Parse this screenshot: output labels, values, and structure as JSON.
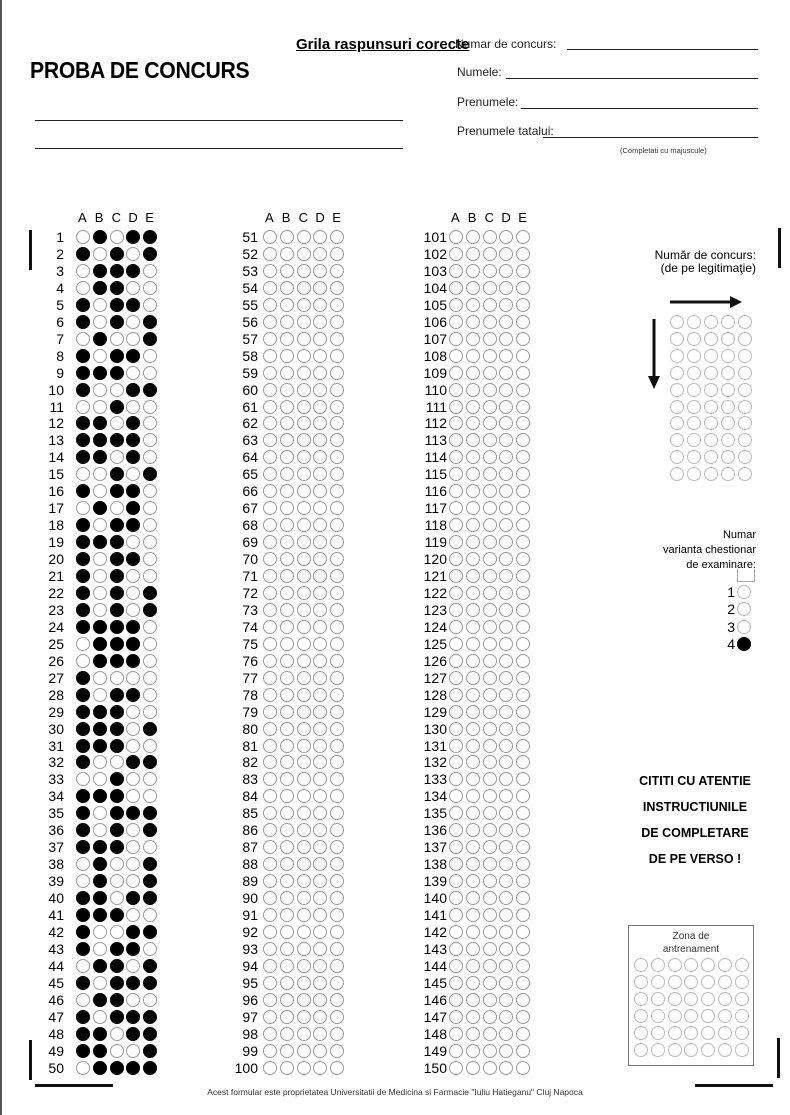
{
  "header": {
    "title": "PROBA DE CONCURS",
    "overlay_title": "Grila raspunsuri corecte",
    "fields": [
      "Numar de concurs:",
      "Numele:",
      "Prenumele:",
      "Prenumele tatalui:"
    ],
    "note": "(Completati cu majuscule)"
  },
  "answer_sheet": {
    "choices": [
      "A",
      "B",
      "C",
      "D",
      "E"
    ],
    "answers": [
      "BDE",
      "ACE",
      "BCD",
      "BC",
      "ACD",
      "ACE",
      "BE",
      "ACD",
      "ABC",
      "ADE",
      "C",
      "ABD",
      "ABCD",
      "ABD",
      "CE",
      "ACD",
      "BD",
      "ACD",
      "ABC",
      "ACD",
      "AC",
      "ACE",
      "ACE",
      "ABCD",
      "BCD",
      "BCD",
      "A",
      "ACD",
      "ABC",
      "ABCE",
      "ABC",
      "ADE",
      "C",
      "ABC",
      "ACDE",
      "ACE",
      "ABC",
      "BE",
      "BE",
      "ABDE",
      "ABC",
      "ADE",
      "ACD",
      "BCE",
      "ACDE",
      "BC",
      "ACDE",
      "ABDE",
      "ABE",
      "BCDE",
      "",
      "",
      "",
      "",
      "",
      "",
      "",
      "",
      "",
      "",
      "",
      "",
      "",
      "",
      "",
      "",
      "",
      "",
      "",
      "",
      "",
      "",
      "",
      "",
      "",
      "",
      "",
      "",
      "",
      "",
      "",
      "",
      "",
      "",
      "",
      "",
      "",
      "",
      "",
      "",
      "",
      "",
      "",
      "",
      "",
      "",
      "",
      "",
      "",
      "",
      "",
      "",
      "",
      "",
      "",
      "",
      "",
      "",
      "",
      "",
      "",
      "",
      "",
      "",
      "",
      "",
      "",
      "",
      "",
      "",
      "",
      "",
      "",
      "",
      "",
      "",
      "",
      "",
      "",
      "",
      "",
      "",
      "",
      "",
      "",
      "",
      "",
      "",
      "",
      "",
      "",
      "",
      "",
      "",
      "",
      "",
      "",
      "",
      "",
      ""
    ]
  },
  "exam_number": {
    "label_line1": "Număr de concurs:",
    "label_line2": "(de pe legitimaţie)"
  },
  "variant": {
    "label_lines": [
      "Numar",
      "varianta chestionar",
      "de examinare:"
    ],
    "options": [
      "1",
      "2",
      "3",
      "4"
    ],
    "selected": "4"
  },
  "instructions": [
    "CITITI CU ATENTIE",
    "INSTRUCTIUNILE",
    "DE COMPLETARE",
    "DE PE VERSO !"
  ],
  "training_zone": {
    "label_line1": "Zona de",
    "label_line2": "antrenament"
  },
  "footer": "Acest formular este proprietatea Universitatii de Medicina si Farmacie \"Iuliu Hatieganu\" Cluj Napoca"
}
